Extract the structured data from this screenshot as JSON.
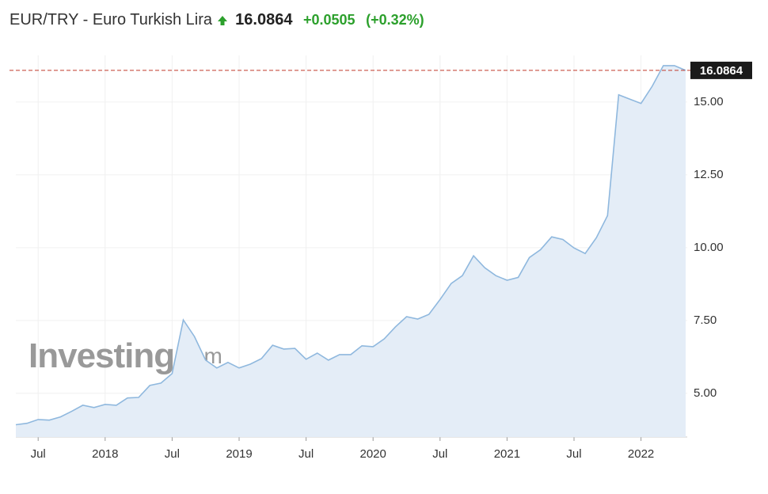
{
  "header": {
    "title": "EUR/TRY - Euro Turkish Lira",
    "price": "16.0864",
    "change": "+0.0505",
    "change_percent": "(+0.32%)"
  },
  "watermark": {
    "brand": "Investing",
    "suffix": ".com"
  },
  "chart_data": {
    "type": "area",
    "color": "#8fb8de",
    "fill": "#e4edf7",
    "x": [
      "2017-05",
      "2017-06",
      "2017-07",
      "2017-08",
      "2017-09",
      "2017-10",
      "2017-11",
      "2017-12",
      "2018-01",
      "2018-02",
      "2018-03",
      "2018-04",
      "2018-05",
      "2018-06",
      "2018-07",
      "2018-08",
      "2018-09",
      "2018-10",
      "2018-11",
      "2018-12",
      "2019-01",
      "2019-02",
      "2019-03",
      "2019-04",
      "2019-05",
      "2019-06",
      "2019-07",
      "2019-08",
      "2019-09",
      "2019-10",
      "2019-11",
      "2019-12",
      "2020-01",
      "2020-02",
      "2020-03",
      "2020-04",
      "2020-05",
      "2020-06",
      "2020-07",
      "2020-08",
      "2020-09",
      "2020-10",
      "2020-11",
      "2020-12",
      "2021-01",
      "2021-02",
      "2021-03",
      "2021-04",
      "2021-05",
      "2021-06",
      "2021-07",
      "2021-08",
      "2021-09",
      "2021-10",
      "2021-11",
      "2021-12",
      "2022-01",
      "2022-02",
      "2022-03",
      "2022-04",
      "2022-05"
    ],
    "values": [
      3.92,
      3.97,
      4.1,
      4.08,
      4.19,
      4.38,
      4.59,
      4.51,
      4.62,
      4.59,
      4.84,
      4.86,
      5.27,
      5.35,
      5.68,
      7.52,
      6.95,
      6.14,
      5.87,
      6.06,
      5.87,
      6.0,
      6.19,
      6.65,
      6.52,
      6.54,
      6.17,
      6.38,
      6.14,
      6.33,
      6.33,
      6.63,
      6.6,
      6.87,
      7.28,
      7.63,
      7.55,
      7.71,
      8.22,
      8.77,
      9.04,
      9.72,
      9.31,
      9.04,
      8.88,
      8.98,
      9.66,
      9.93,
      10.37,
      10.28,
      9.99,
      9.8,
      10.34,
      11.1,
      15.25,
      15.1,
      14.95,
      15.54,
      16.25,
      16.25,
      16.0864
    ],
    "xlim": [
      "2017-05",
      "2022-05"
    ],
    "xticks": [
      {
        "value": "2017-07",
        "label": "Jul"
      },
      {
        "value": "2018-01",
        "label": "2018"
      },
      {
        "value": "2018-07",
        "label": "Jul"
      },
      {
        "value": "2019-01",
        "label": "2019"
      },
      {
        "value": "2019-07",
        "label": "Jul"
      },
      {
        "value": "2020-01",
        "label": "2020"
      },
      {
        "value": "2020-07",
        "label": "Jul"
      },
      {
        "value": "2021-01",
        "label": "2021"
      },
      {
        "value": "2021-07",
        "label": "Jul"
      },
      {
        "value": "2022-01",
        "label": "2022"
      }
    ],
    "ylim": [
      3.5,
      16.6
    ],
    "yticks": [
      {
        "value": 5,
        "label": "5.00"
      },
      {
        "value": 7.5,
        "label": "7.50"
      },
      {
        "value": 10,
        "label": "10.00"
      },
      {
        "value": 12.5,
        "label": "12.50"
      },
      {
        "value": 15,
        "label": "15.00"
      }
    ],
    "grid": true,
    "last_value": {
      "value": 16.0864,
      "label": "16.0864"
    }
  }
}
